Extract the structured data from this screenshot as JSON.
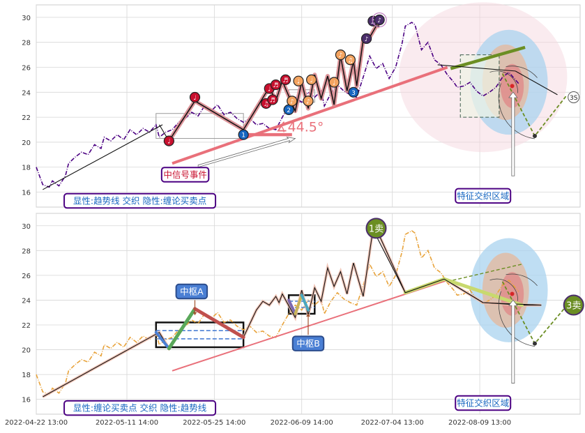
{
  "chart_data": [
    {
      "type": "line",
      "panel": "top",
      "ylim": [
        14.8,
        31.0
      ],
      "yticks": [
        16,
        18,
        20,
        22,
        24,
        26,
        28,
        30
      ],
      "grid": true,
      "price_color": "#4b0082",
      "price": [
        [
          0,
          18.0
        ],
        [
          2,
          16.6
        ],
        [
          4,
          16.4
        ],
        [
          5,
          16.9
        ],
        [
          7,
          16.5
        ],
        [
          9,
          17.3
        ],
        [
          10,
          18.3
        ],
        [
          12,
          18.8
        ],
        [
          14,
          19.2
        ],
        [
          16,
          19.0
        ],
        [
          18,
          19.8
        ],
        [
          20,
          19.5
        ],
        [
          21,
          20.4
        ],
        [
          23,
          20.1
        ],
        [
          25,
          20.6
        ],
        [
          27,
          20.2
        ],
        [
          29,
          21.0
        ],
        [
          31,
          20.6
        ],
        [
          33,
          21.1
        ],
        [
          35,
          20.8
        ],
        [
          37,
          21.4
        ],
        [
          38,
          20.4
        ],
        [
          40,
          20.8
        ],
        [
          42,
          21.0
        ],
        [
          44,
          21.6
        ],
        [
          46,
          21.9
        ],
        [
          48,
          22.4
        ],
        [
          50,
          22.1
        ],
        [
          52,
          22.9
        ],
        [
          54,
          22.5
        ],
        [
          56,
          23.0
        ],
        [
          58,
          22.2
        ],
        [
          60,
          22.4
        ],
        [
          62,
          21.9
        ],
        [
          64,
          21.6
        ],
        [
          66,
          21.9
        ],
        [
          68,
          21.4
        ],
        [
          70,
          21.5
        ],
        [
          72,
          21.1
        ],
        [
          74,
          21.0
        ],
        [
          76,
          22.0
        ],
        [
          78,
          22.9
        ],
        [
          80,
          23.6
        ],
        [
          82,
          23.2
        ],
        [
          84,
          24.0
        ],
        [
          86,
          23.6
        ],
        [
          88,
          24.1
        ],
        [
          89,
          22.9
        ],
        [
          91,
          23.9
        ],
        [
          93,
          24.6
        ],
        [
          95,
          24.1
        ],
        [
          97,
          23.8
        ],
        [
          99,
          23.6
        ],
        [
          101,
          25.2
        ],
        [
          103,
          26.9
        ],
        [
          105,
          25.9
        ],
        [
          107,
          26.3
        ],
        [
          109,
          25.1
        ],
        [
          111,
          26.0
        ],
        [
          113,
          27.9
        ],
        [
          114,
          29.3
        ],
        [
          116,
          29.6
        ],
        [
          117,
          29.4
        ],
        [
          119,
          27.4
        ],
        [
          121,
          28.0
        ],
        [
          123,
          26.6
        ],
        [
          125,
          26.2
        ],
        [
          127,
          25.4
        ],
        [
          129,
          24.8
        ],
        [
          130,
          24.4
        ],
        [
          132,
          24.5
        ],
        [
          134,
          24.8
        ],
        [
          136,
          24.1
        ],
        [
          138,
          23.7
        ],
        [
          140,
          24.0
        ],
        [
          142,
          24.4
        ],
        [
          144,
          25.2
        ],
        [
          146,
          25.6
        ],
        [
          148,
          25.0
        ],
        [
          149,
          24.7
        ]
      ],
      "trend_lines": [
        {
          "from": [
            2,
            16.2
          ],
          "to": [
            39,
            21.4
          ]
        },
        {
          "from": [
            38,
            21.4
          ],
          "to": [
            41,
            20.1
          ]
        },
        {
          "from": [
            124,
            26.2
          ],
          "to": [
            148,
            25.7
          ]
        },
        {
          "from": [
            148,
            25.7
          ],
          "to": [
            161,
            23.8
          ]
        }
      ],
      "bi": [
        [
          41,
          20.1
        ],
        [
          49,
          23.3
        ],
        [
          64,
          21.0
        ],
        [
          72,
          24.4
        ],
        [
          74,
          23.3
        ],
        [
          76,
          24.9
        ],
        [
          80,
          22.5
        ],
        [
          82,
          24.8
        ],
        [
          84,
          22.7
        ],
        [
          86,
          25.4
        ],
        [
          88,
          23.5
        ],
        [
          90,
          25.3
        ],
        [
          92,
          23.0
        ],
        [
          94,
          26.9
        ],
        [
          96,
          24.1
        ],
        [
          98,
          26.5
        ],
        [
          99,
          24.5
        ],
        [
          101,
          28.2
        ],
        [
          103,
          28.4
        ],
        [
          105,
          29.3
        ],
        [
          106,
          29.3
        ]
      ],
      "zhongshu": [
        {
          "x0": 37,
          "x1": 64,
          "y0": 20.3,
          "y1": 22.3,
          "color": "#9a9a9a"
        },
        {
          "x0": 78,
          "x1": 86,
          "y0": 23.2,
          "y1": 24.2,
          "color": "#9a9a9a"
        },
        {
          "x0": 131,
          "x1": 143,
          "y0": 22.0,
          "y1": 27.0,
          "color": "#3f5f4f"
        }
      ],
      "support_line": {
        "from": [
          42,
          18.3
        ],
        "to": [
          127,
          26.0
        ],
        "color": "#e9707a"
      },
      "green_line": {
        "from": [
          128,
          25.9
        ],
        "to": [
          151,
          27.6
        ],
        "color": "#6b8e23"
      },
      "short_red_line": {
        "from": [
          64,
          20.6
        ],
        "to": [
          79,
          20.6
        ],
        "color": "#e9707a"
      },
      "angle_label": "∡44.5°",
      "angle_at": [
        74,
        21.2
      ],
      "buy_marks": [
        {
          "x": 41,
          "y": 20.1,
          "c": "#c8102e",
          "t": "♩"
        },
        {
          "x": 49,
          "y": 23.6,
          "c": "#c8102e",
          "t": "♩"
        },
        {
          "x": 64,
          "y": 20.6,
          "c": "#1565c0",
          "t": "1"
        },
        {
          "x": 71,
          "y": 23.1,
          "c": "#c8102e",
          "t": "♫"
        },
        {
          "x": 72,
          "y": 24.3,
          "c": "#c8102e",
          "t": "♩"
        },
        {
          "x": 73,
          "y": 23.4,
          "c": "#c8102e",
          "t": "♬"
        },
        {
          "x": 74,
          "y": 24.6,
          "c": "#c8102e",
          "t": "♬"
        },
        {
          "x": 77,
          "y": 25.0,
          "c": "#c8102e",
          "t": "♬"
        },
        {
          "x": 78,
          "y": 22.6,
          "c": "#1565c0",
          "t": "2"
        },
        {
          "x": 79,
          "y": 23.3,
          "c": "#f4a460",
          "t": "♪"
        },
        {
          "x": 81,
          "y": 24.9,
          "c": "#f4a460",
          "t": "♩"
        },
        {
          "x": 84,
          "y": 23.3,
          "c": "#f4a460",
          "t": "♪"
        },
        {
          "x": 85,
          "y": 25.0,
          "c": "#f4a460",
          "t": "♩"
        },
        {
          "x": 92,
          "y": 24.8,
          "c": "#f4a460",
          "t": "♩"
        },
        {
          "x": 94,
          "y": 27.0,
          "c": "#f4a460",
          "t": "♪"
        },
        {
          "x": 97,
          "y": 26.6,
          "c": "#f4a460",
          "t": "♫"
        },
        {
          "x": 98,
          "y": 24.0,
          "c": "#1565c0",
          "t": "3"
        },
        {
          "x": 102,
          "y": 28.3,
          "c": "#4b2e6b",
          "t": "♪"
        },
        {
          "x": 104,
          "y": 29.7,
          "c": "#4b2e6b",
          "t": "♫"
        },
        {
          "x": 106,
          "y": 29.8,
          "c": "#4b2e6b",
          "t": "♪"
        }
      ],
      "sell_mark": {
        "x": 166,
        "y": 23.6,
        "t": "3S"
      },
      "projection": {
        "top": [
          144,
          25.5
        ],
        "p1": [
          154,
          20.5
        ],
        "p2": [
          164,
          23.8
        ]
      },
      "ellipse_area": {
        "cx": 138,
        "cy": 25.2,
        "rx": 26,
        "ry": 6.0,
        "color": "#f6d8df"
      },
      "circle_area": {
        "cx": 146,
        "cy": 24.8,
        "rx": 12,
        "ry": 4.2
      },
      "annotations": [
        {
          "id": "zxh",
          "text": "中信号事件",
          "x": 46,
          "y": 17.4,
          "color": "#c8102e"
        },
        {
          "id": "tz",
          "text": "特征交织区域",
          "x": 138,
          "y": 15.7,
          "color": "#1565c0"
        },
        {
          "id": "lg",
          "text": "显性:趋势线 交织 隐性:缠论买卖点",
          "x": 32,
          "y": 15.3,
          "color": "#1565c0"
        }
      ]
    },
    {
      "type": "line",
      "panel": "bottom",
      "ylim": [
        14.8,
        31.0
      ],
      "yticks": [
        16,
        18,
        20,
        22,
        24,
        26,
        28,
        30
      ],
      "grid": true,
      "price_color": "#e8a33b",
      "price": [
        [
          0,
          18.0
        ],
        [
          2,
          16.6
        ],
        [
          4,
          16.4
        ],
        [
          5,
          16.9
        ],
        [
          7,
          16.5
        ],
        [
          9,
          17.3
        ],
        [
          10,
          18.3
        ],
        [
          12,
          18.8
        ],
        [
          14,
          19.2
        ],
        [
          16,
          19.0
        ],
        [
          18,
          19.8
        ],
        [
          20,
          19.5
        ],
        [
          21,
          20.4
        ],
        [
          23,
          20.1
        ],
        [
          25,
          20.6
        ],
        [
          27,
          20.2
        ],
        [
          29,
          21.0
        ],
        [
          31,
          20.6
        ],
        [
          33,
          21.1
        ],
        [
          35,
          20.8
        ],
        [
          37,
          21.4
        ],
        [
          38,
          20.4
        ],
        [
          40,
          20.8
        ],
        [
          42,
          21.0
        ],
        [
          44,
          21.6
        ],
        [
          46,
          21.9
        ],
        [
          48,
          22.4
        ],
        [
          50,
          22.1
        ],
        [
          52,
          22.9
        ],
        [
          54,
          22.5
        ],
        [
          56,
          23.0
        ],
        [
          58,
          22.2
        ],
        [
          60,
          22.4
        ],
        [
          62,
          21.9
        ],
        [
          64,
          21.6
        ],
        [
          66,
          21.9
        ],
        [
          68,
          21.4
        ],
        [
          70,
          21.5
        ],
        [
          72,
          21.1
        ],
        [
          74,
          21.0
        ],
        [
          76,
          22.0
        ],
        [
          78,
          22.9
        ],
        [
          80,
          23.6
        ],
        [
          82,
          23.2
        ],
        [
          84,
          24.0
        ],
        [
          86,
          23.6
        ],
        [
          88,
          24.1
        ],
        [
          89,
          22.9
        ],
        [
          91,
          23.9
        ],
        [
          93,
          24.6
        ],
        [
          95,
          24.1
        ],
        [
          97,
          23.8
        ],
        [
          99,
          23.6
        ],
        [
          101,
          25.2
        ],
        [
          103,
          26.9
        ],
        [
          105,
          25.9
        ],
        [
          107,
          26.3
        ],
        [
          109,
          25.1
        ],
        [
          111,
          26.0
        ],
        [
          113,
          27.9
        ],
        [
          114,
          29.3
        ],
        [
          116,
          29.6
        ],
        [
          117,
          29.4
        ],
        [
          119,
          27.4
        ],
        [
          121,
          28.0
        ],
        [
          123,
          26.6
        ],
        [
          125,
          26.2
        ],
        [
          127,
          25.4
        ],
        [
          129,
          24.8
        ],
        [
          130,
          24.4
        ],
        [
          132,
          24.5
        ],
        [
          134,
          24.8
        ],
        [
          136,
          24.1
        ],
        [
          138,
          23.7
        ],
        [
          140,
          24.0
        ],
        [
          142,
          24.4
        ],
        [
          144,
          25.2
        ],
        [
          146,
          25.6
        ],
        [
          148,
          25.0
        ],
        [
          149,
          24.7
        ]
      ],
      "bi": [
        [
          2,
          16.2
        ],
        [
          38,
          21.4
        ],
        [
          41,
          20.1
        ],
        [
          49,
          23.3
        ],
        [
          64,
          21.0
        ],
        [
          68,
          23.2
        ],
        [
          70,
          23.9
        ],
        [
          72,
          23.6
        ],
        [
          74,
          24.3
        ],
        [
          75,
          23.8
        ],
        [
          76,
          24.5
        ],
        [
          80,
          22.6
        ],
        [
          82,
          24.8
        ],
        [
          84,
          22.8
        ],
        [
          86,
          25.0
        ],
        [
          88,
          23.9
        ],
        [
          90,
          26.6
        ],
        [
          92,
          25.1
        ],
        [
          94,
          26.3
        ],
        [
          96,
          24.5
        ],
        [
          98,
          27.0
        ],
        [
          101,
          24.3
        ],
        [
          104,
          29.7
        ],
        [
          106,
          29.2
        ],
        [
          114,
          24.6
        ],
        [
          126,
          25.7
        ],
        [
          138,
          23.8
        ],
        [
          150,
          23.6
        ],
        [
          156,
          23.6
        ]
      ],
      "zhongshu": [
        {
          "x0": 37,
          "x1": 64,
          "y0": 20.2,
          "y1": 22.2,
          "label": "中枢A"
        },
        {
          "x0": 78,
          "x1": 86,
          "y0": 22.9,
          "y1": 24.4,
          "label": "中枢B"
        }
      ],
      "support_line": {
        "from": [
          42,
          18.3
        ],
        "to": [
          127,
          25.6
        ],
        "color": "#e9707a"
      },
      "dashed_green": {
        "from": [
          127,
          25.5
        ],
        "to": [
          150,
          26.9
        ],
        "color": "#6b8e23"
      },
      "projection": {
        "top": [
          144,
          25.5
        ],
        "p1": [
          154,
          20.5
        ],
        "p2": [
          164,
          23.6
        ]
      },
      "circle_area": {
        "cx": 146,
        "cy": 24.8,
        "rx": 12,
        "ry": 4.2
      },
      "sell_marks": [
        {
          "x": 105,
          "y": 29.8,
          "t": "1卖"
        },
        {
          "x": 166,
          "y": 23.6,
          "t": "3卖"
        }
      ],
      "annotations": [
        {
          "id": "zsa",
          "text": "中枢A",
          "x": 48,
          "y": 24.7,
          "color": "#ffffff"
        },
        {
          "id": "zsb",
          "text": "中枢B",
          "x": 84,
          "y": 20.5,
          "color": "#ffffff"
        },
        {
          "id": "tz",
          "text": "特征交织区域",
          "x": 138,
          "y": 15.7,
          "color": "#1565c0"
        },
        {
          "id": "lg",
          "text": "显性:缠论买卖点 交织 隐性:趋势线",
          "x": 32,
          "y": 15.3,
          "color": "#1565c0"
        }
      ],
      "xticks": [
        {
          "x": 0,
          "label": "2022-04-22 13:00"
        },
        {
          "x": 28,
          "label": "2022-05-11 14:00"
        },
        {
          "x": 55,
          "label": "2022-05-25 14:00"
        },
        {
          "x": 82,
          "label": "2022-06-09 14:00"
        },
        {
          "x": 110,
          "label": "2022-07-04 13:00"
        },
        {
          "x": 137,
          "label": "2022-08-09 13:00"
        }
      ]
    }
  ]
}
